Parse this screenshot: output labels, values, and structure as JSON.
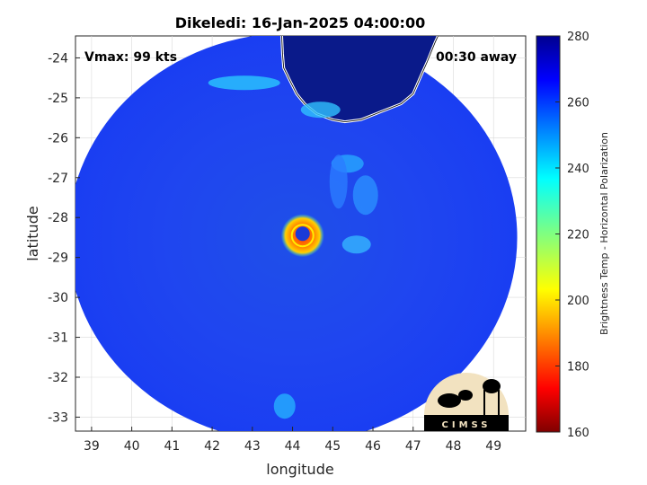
{
  "chart_data": {
    "type": "heatmap",
    "title": "Dikeledi: 16-Jan-2025 04:00:00",
    "xlabel": "longitude",
    "ylabel": "latitude",
    "xlim": [
      38.6,
      49.8
    ],
    "ylim": [
      -33.35,
      -23.45
    ],
    "x_ticks": [
      39,
      40,
      41,
      42,
      43,
      44,
      45,
      46,
      47,
      48,
      49
    ],
    "y_ticks": [
      -24,
      -25,
      -26,
      -27,
      -28,
      -29,
      -30,
      -31,
      -32,
      -33
    ],
    "grid": true,
    "annotations": {
      "vmax": "Vmax: 99 kts",
      "time_offset": "00:30 away"
    },
    "storm_center": {
      "lon": 44.25,
      "lat": -28.45
    },
    "swath_center": {
      "lon": 44.0,
      "lat": -28.5
    },
    "colorbar": {
      "label": "Brightness Temp - Horizontal Polarization",
      "range": [
        160,
        280
      ],
      "ticks": [
        160,
        180,
        200,
        220,
        240,
        260,
        280
      ],
      "colormap": "jet"
    },
    "coastline": [
      [
        43.73,
        -23.45
      ],
      [
        43.75,
        -23.9
      ],
      [
        43.78,
        -24.25
      ],
      [
        43.95,
        -24.6
      ],
      [
        44.1,
        -24.9
      ],
      [
        44.3,
        -25.15
      ],
      [
        44.6,
        -25.4
      ],
      [
        45.0,
        -25.55
      ],
      [
        45.3,
        -25.6
      ],
      [
        45.7,
        -25.55
      ],
      [
        46.2,
        -25.35
      ],
      [
        46.7,
        -25.15
      ],
      [
        47.0,
        -24.9
      ],
      [
        47.15,
        -24.55
      ],
      [
        47.35,
        -24.1
      ],
      [
        47.55,
        -23.6
      ],
      [
        47.62,
        -23.45
      ]
    ],
    "logo": "CIMSS"
  }
}
